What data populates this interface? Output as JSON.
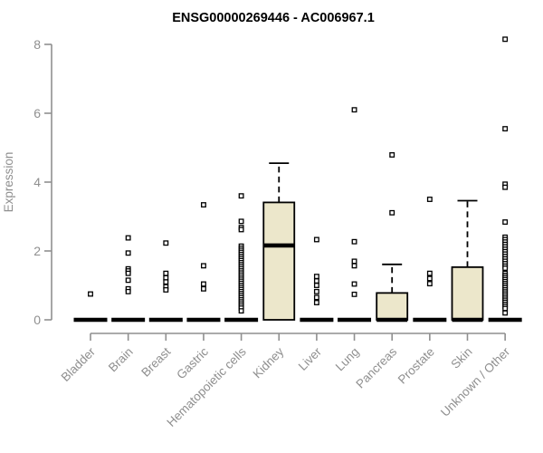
{
  "title": "ENSG00000269446 - AC006967.1",
  "chart_data": {
    "type": "boxplot",
    "title": "ENSG00000269446 - AC006967.1",
    "xlabel": "",
    "ylabel": "Expression",
    "ylim": [
      0,
      8.3
    ],
    "yticks": [
      0,
      2,
      4,
      6,
      8
    ],
    "grid": false,
    "legend": "none",
    "colors": {
      "box_fill": "#ece7cb",
      "box_stroke": "#000000",
      "axis": "#8f8f8f",
      "tick_label": "#8f8f8f",
      "title": "#000000",
      "outlier_fill": "#ffffff",
      "outlier_stroke": "#000000"
    },
    "categories": [
      "Bladder",
      "Brain",
      "Breast",
      "Gastric",
      "Hematopoietic cells",
      "Kidney",
      "Liver",
      "Lung",
      "Pancreas",
      "Prostate",
      "Skin",
      "Unknown / Other"
    ],
    "series": [
      {
        "name": "Bladder",
        "q1": 0,
        "median": 0,
        "q3": 0,
        "whisker_low": 0,
        "whisker_high": 0,
        "outliers": [
          0.75
        ]
      },
      {
        "name": "Brain",
        "q1": 0,
        "median": 0,
        "q3": 0,
        "whisker_low": 0,
        "whisker_high": 0,
        "outliers": [
          2.38,
          1.94,
          1.48,
          1.42,
          1.35,
          1.15,
          0.9,
          0.82
        ]
      },
      {
        "name": "Breast",
        "q1": 0,
        "median": 0,
        "q3": 0,
        "whisker_low": 0,
        "whisker_high": 0,
        "outliers": [
          2.23,
          1.35,
          1.22,
          1.1,
          0.96,
          0.87
        ]
      },
      {
        "name": "Gastric",
        "q1": 0,
        "median": 0,
        "q3": 0,
        "whisker_low": 0,
        "whisker_high": 0,
        "outliers": [
          3.34,
          1.57,
          1.04,
          0.9
        ]
      },
      {
        "name": "Hematopoietic cells",
        "q1": 0,
        "median": 0,
        "q3": 0,
        "whisker_low": 0,
        "whisker_high": 0,
        "outliers": [
          3.6,
          2.86,
          2.68,
          2.62,
          2.14,
          2.08,
          2.02,
          1.96,
          1.9,
          1.84,
          1.78,
          1.72,
          1.66,
          1.6,
          1.54,
          1.48,
          1.42,
          1.36,
          1.3,
          1.24,
          1.18,
          1.12,
          1.06,
          1.0,
          0.94,
          0.88,
          0.82,
          0.76,
          0.7,
          0.64,
          0.58,
          0.52,
          0.46,
          0.4,
          0.34,
          0.26
        ]
      },
      {
        "name": "Kidney",
        "q1": 0,
        "median": 2.16,
        "q3": 3.41,
        "whisker_low": 0,
        "whisker_high": 4.55,
        "outliers": []
      },
      {
        "name": "Liver",
        "q1": 0,
        "median": 0,
        "q3": 0,
        "whisker_low": 0,
        "whisker_high": 0,
        "outliers": [
          2.33,
          1.26,
          1.13,
          1.0,
          0.82,
          0.65,
          0.5
        ]
      },
      {
        "name": "Lung",
        "q1": 0,
        "median": 0,
        "q3": 0,
        "whisker_low": 0,
        "whisker_high": 0,
        "outliers": [
          6.1,
          2.27,
          1.7,
          1.57,
          1.04,
          0.74
        ]
      },
      {
        "name": "Pancreas",
        "q1": 0,
        "median": 0,
        "q3": 0.78,
        "whisker_low": 0,
        "whisker_high": 1.61,
        "outliers": [
          4.79,
          3.11
        ]
      },
      {
        "name": "Prostate",
        "q1": 0,
        "median": 0,
        "q3": 0,
        "whisker_low": 0,
        "whisker_high": 0,
        "outliers": [
          3.5,
          1.35,
          1.2,
          1.05
        ]
      },
      {
        "name": "Skin",
        "q1": 0,
        "median": 0,
        "q3": 1.53,
        "whisker_low": 0,
        "whisker_high": 3.46,
        "outliers": []
      },
      {
        "name": "Unknown / Other",
        "q1": 0,
        "median": 0,
        "q3": 0,
        "whisker_low": 0,
        "whisker_high": 0,
        "outliers": [
          8.15,
          5.55,
          3.94,
          3.85,
          2.84,
          2.4,
          2.33,
          2.26,
          2.19,
          2.12,
          2.05,
          1.98,
          1.91,
          1.84,
          1.77,
          1.7,
          1.63,
          1.56,
          1.5,
          1.35,
          1.29,
          1.23,
          1.17,
          1.11,
          1.05,
          0.99,
          0.93,
          0.87,
          0.81,
          0.75,
          0.69,
          0.63,
          0.57,
          0.51,
          0.45,
          0.39,
          0.33,
          0.2
        ]
      }
    ]
  }
}
